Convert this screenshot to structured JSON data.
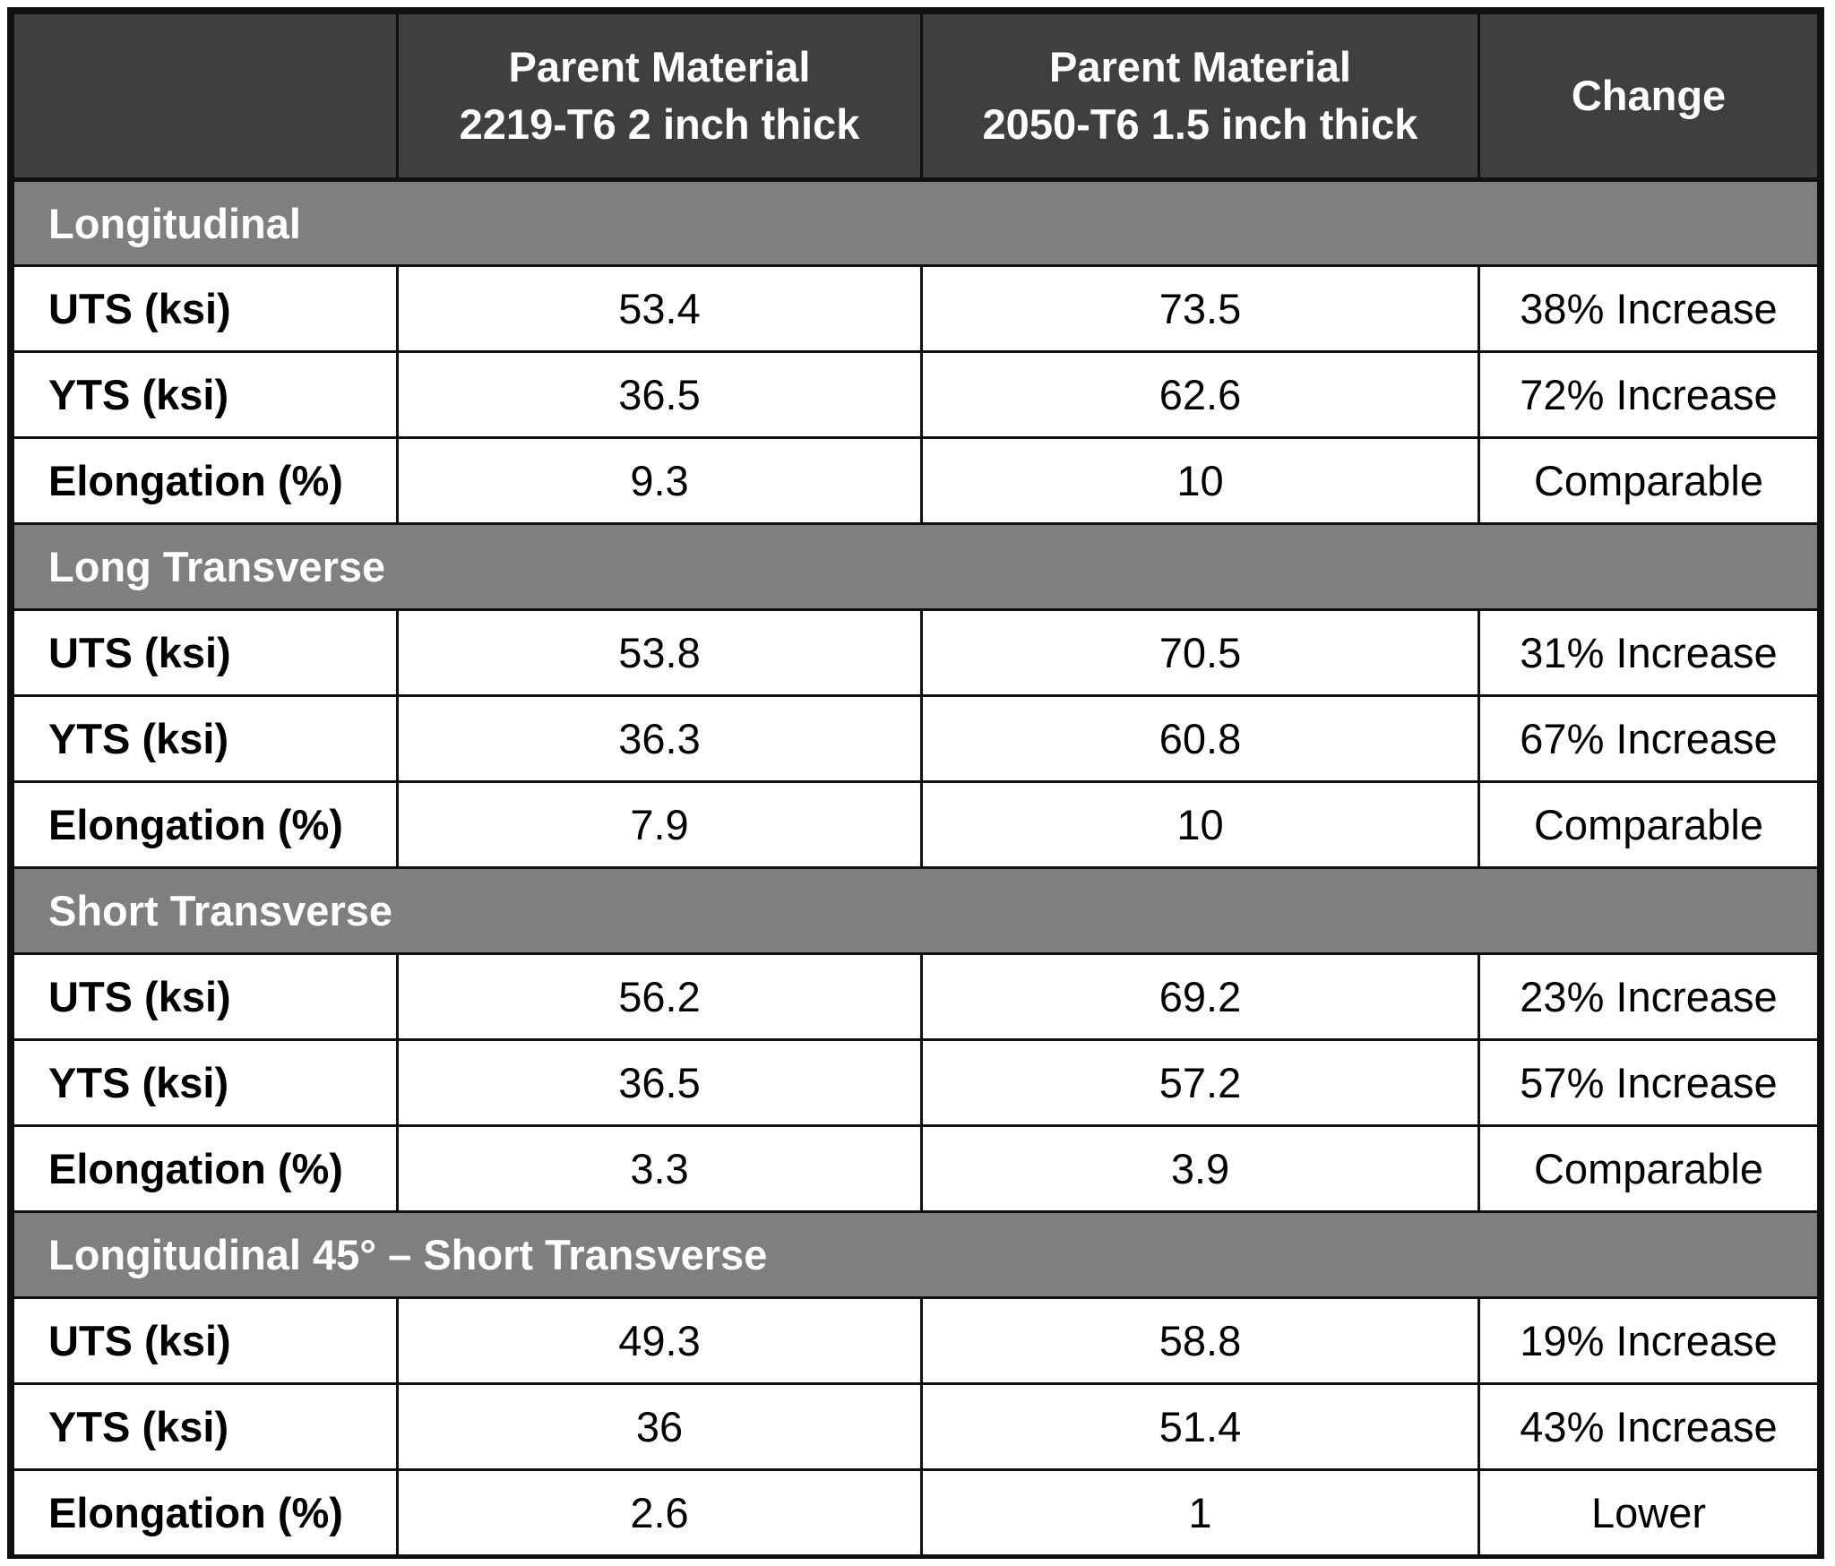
{
  "header": {
    "col0": "",
    "col1_line1": "Parent Material",
    "col1_line2": "2219-T6 2 inch thick",
    "col2_line1": "Parent Material",
    "col2_line2": "2050-T6 1.5 inch thick",
    "col3": "Change"
  },
  "sections": [
    {
      "title": "Longitudinal",
      "rows": [
        {
          "metric": "UTS (ksi)",
          "m2219": "53.4",
          "m2050": "73.5",
          "change": "38% Increase"
        },
        {
          "metric": "YTS (ksi)",
          "m2219": "36.5",
          "m2050": "62.6",
          "change": "72% Increase"
        },
        {
          "metric": "Elongation (%)",
          "m2219": "9.3",
          "m2050": "10",
          "change": "Comparable"
        }
      ]
    },
    {
      "title": "Long Transverse",
      "rows": [
        {
          "metric": "UTS (ksi)",
          "m2219": "53.8",
          "m2050": "70.5",
          "change": "31% Increase"
        },
        {
          "metric": "YTS (ksi)",
          "m2219": "36.3",
          "m2050": "60.8",
          "change": "67% Increase"
        },
        {
          "metric": "Elongation (%)",
          "m2219": "7.9",
          "m2050": "10",
          "change": "Comparable"
        }
      ]
    },
    {
      "title": "Short Transverse",
      "rows": [
        {
          "metric": "UTS (ksi)",
          "m2219": "56.2",
          "m2050": "69.2",
          "change": "23% Increase"
        },
        {
          "metric": "YTS (ksi)",
          "m2219": "36.5",
          "m2050": "57.2",
          "change": "57% Increase"
        },
        {
          "metric": "Elongation (%)",
          "m2219": "3.3",
          "m2050": "3.9",
          "change": "Comparable"
        }
      ]
    },
    {
      "title": "Longitudinal 45° – Short Transverse",
      "rows": [
        {
          "metric": "UTS (ksi)",
          "m2219": "49.3",
          "m2050": "58.8",
          "change": "19% Increase"
        },
        {
          "metric": "YTS (ksi)",
          "m2219": "36",
          "m2050": "51.4",
          "change": "43% Increase"
        },
        {
          "metric": "Elongation (%)",
          "m2219": "2.6",
          "m2050": "1",
          "change": "Lower"
        }
      ]
    }
  ]
}
